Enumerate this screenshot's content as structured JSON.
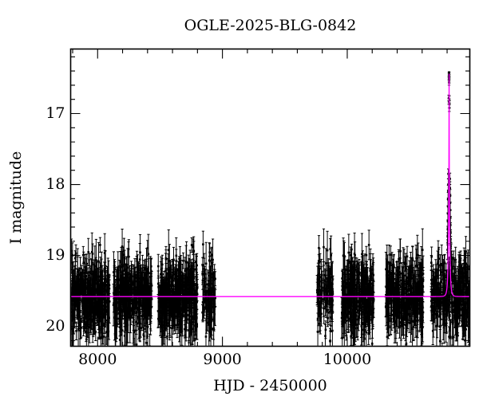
{
  "figure": {
    "background": "#ffffff",
    "frame_color": "#000000",
    "data_color": "#000000",
    "model_color": "#ff00ff"
  },
  "chart_data": {
    "type": "scatter",
    "title": "OGLE-2025-BLG-0842",
    "xlabel": "HJD - 2450000",
    "ylabel": "I magnitude",
    "xlim": [
      7784,
      10982
    ],
    "ylim_mag_bottom_top": [
      20.28,
      16.09
    ],
    "x_ticks_major": [
      8000,
      9000,
      10000
    ],
    "x_tick_labels": [
      "8000",
      "9000",
      "10000"
    ],
    "x_tick_minor_step": 200,
    "y_ticks_major": [
      17,
      18,
      19,
      20
    ],
    "y_tick_labels": [
      "17",
      "18",
      "19",
      "20"
    ],
    "y_tick_minor_step": 0.2,
    "grid": false,
    "legend": null,
    "baseline_mag": 19.58,
    "model": {
      "kind": "microlensing-point-lens",
      "t0": 10816,
      "tE_days": 11,
      "peak_mag": 16.44,
      "baseline_mag": 19.58,
      "color": "#ff00ff"
    },
    "seasons": [
      {
        "t_start": 7788,
        "t_end": 8095,
        "n": 340,
        "mag_mean": 19.57,
        "mag_sigma": 0.27
      },
      {
        "t_start": 8127,
        "t_end": 8434,
        "n": 340,
        "mag_mean": 19.57,
        "mag_sigma": 0.27
      },
      {
        "t_start": 8484,
        "t_end": 8800,
        "n": 350,
        "mag_mean": 19.57,
        "mag_sigma": 0.27
      },
      {
        "t_start": 8840,
        "t_end": 8945,
        "n": 85,
        "mag_mean": 19.58,
        "mag_sigma": 0.3
      },
      {
        "t_start": 9758,
        "t_end": 9886,
        "n": 100,
        "mag_mean": 19.57,
        "mag_sigma": 0.27
      },
      {
        "t_start": 9956,
        "t_end": 10212,
        "n": 290,
        "mag_mean": 19.57,
        "mag_sigma": 0.27
      },
      {
        "t_start": 10308,
        "t_end": 10608,
        "n": 310,
        "mag_mean": 19.57,
        "mag_sigma": 0.27
      },
      {
        "t_start": 10672,
        "t_end": 10979,
        "n": 320,
        "mag_mean": 19.57,
        "mag_sigma": 0.27
      }
    ],
    "event_points": [
      [
        10815.0,
        16.46,
        0.03
      ],
      [
        10815.4,
        16.5,
        0.03
      ],
      [
        10815.8,
        16.44,
        0.03
      ],
      [
        10816.2,
        16.48,
        0.03
      ],
      [
        10816.6,
        16.53,
        0.04
      ],
      [
        10815.6,
        16.56,
        0.04
      ],
      [
        10816.0,
        16.45,
        0.03
      ],
      [
        10813.6,
        16.78,
        0.04
      ],
      [
        10814.0,
        16.83,
        0.04
      ],
      [
        10817.9,
        16.8,
        0.05
      ],
      [
        10818.3,
        16.87,
        0.05
      ],
      [
        10817.5,
        16.92,
        0.05
      ],
      [
        10809.8,
        17.85,
        0.07
      ],
      [
        10822.6,
        17.92,
        0.08
      ],
      [
        10809.2,
        18.0,
        0.08
      ],
      [
        10823.2,
        18.05,
        0.09
      ],
      [
        10808.7,
        18.1,
        0.09
      ],
      [
        10823.8,
        18.16,
        0.09
      ],
      [
        10808.1,
        18.21,
        0.1
      ],
      [
        10824.4,
        18.26,
        0.1
      ],
      [
        10807.5,
        18.31,
        0.1
      ],
      [
        10825.1,
        18.36,
        0.11
      ],
      [
        10806.9,
        18.41,
        0.11
      ],
      [
        10825.8,
        18.47,
        0.11
      ],
      [
        10806.2,
        18.52,
        0.12
      ],
      [
        10826.6,
        18.57,
        0.12
      ],
      [
        10805.5,
        18.62,
        0.12
      ],
      [
        10827.4,
        18.67,
        0.13
      ],
      [
        10804.8,
        18.72,
        0.13
      ],
      [
        10828.3,
        18.77,
        0.13
      ],
      [
        10804.0,
        18.82,
        0.14
      ],
      [
        10829.2,
        18.87,
        0.14
      ],
      [
        10803.2,
        18.92,
        0.14
      ],
      [
        10830.2,
        18.97,
        0.15
      ]
    ]
  }
}
